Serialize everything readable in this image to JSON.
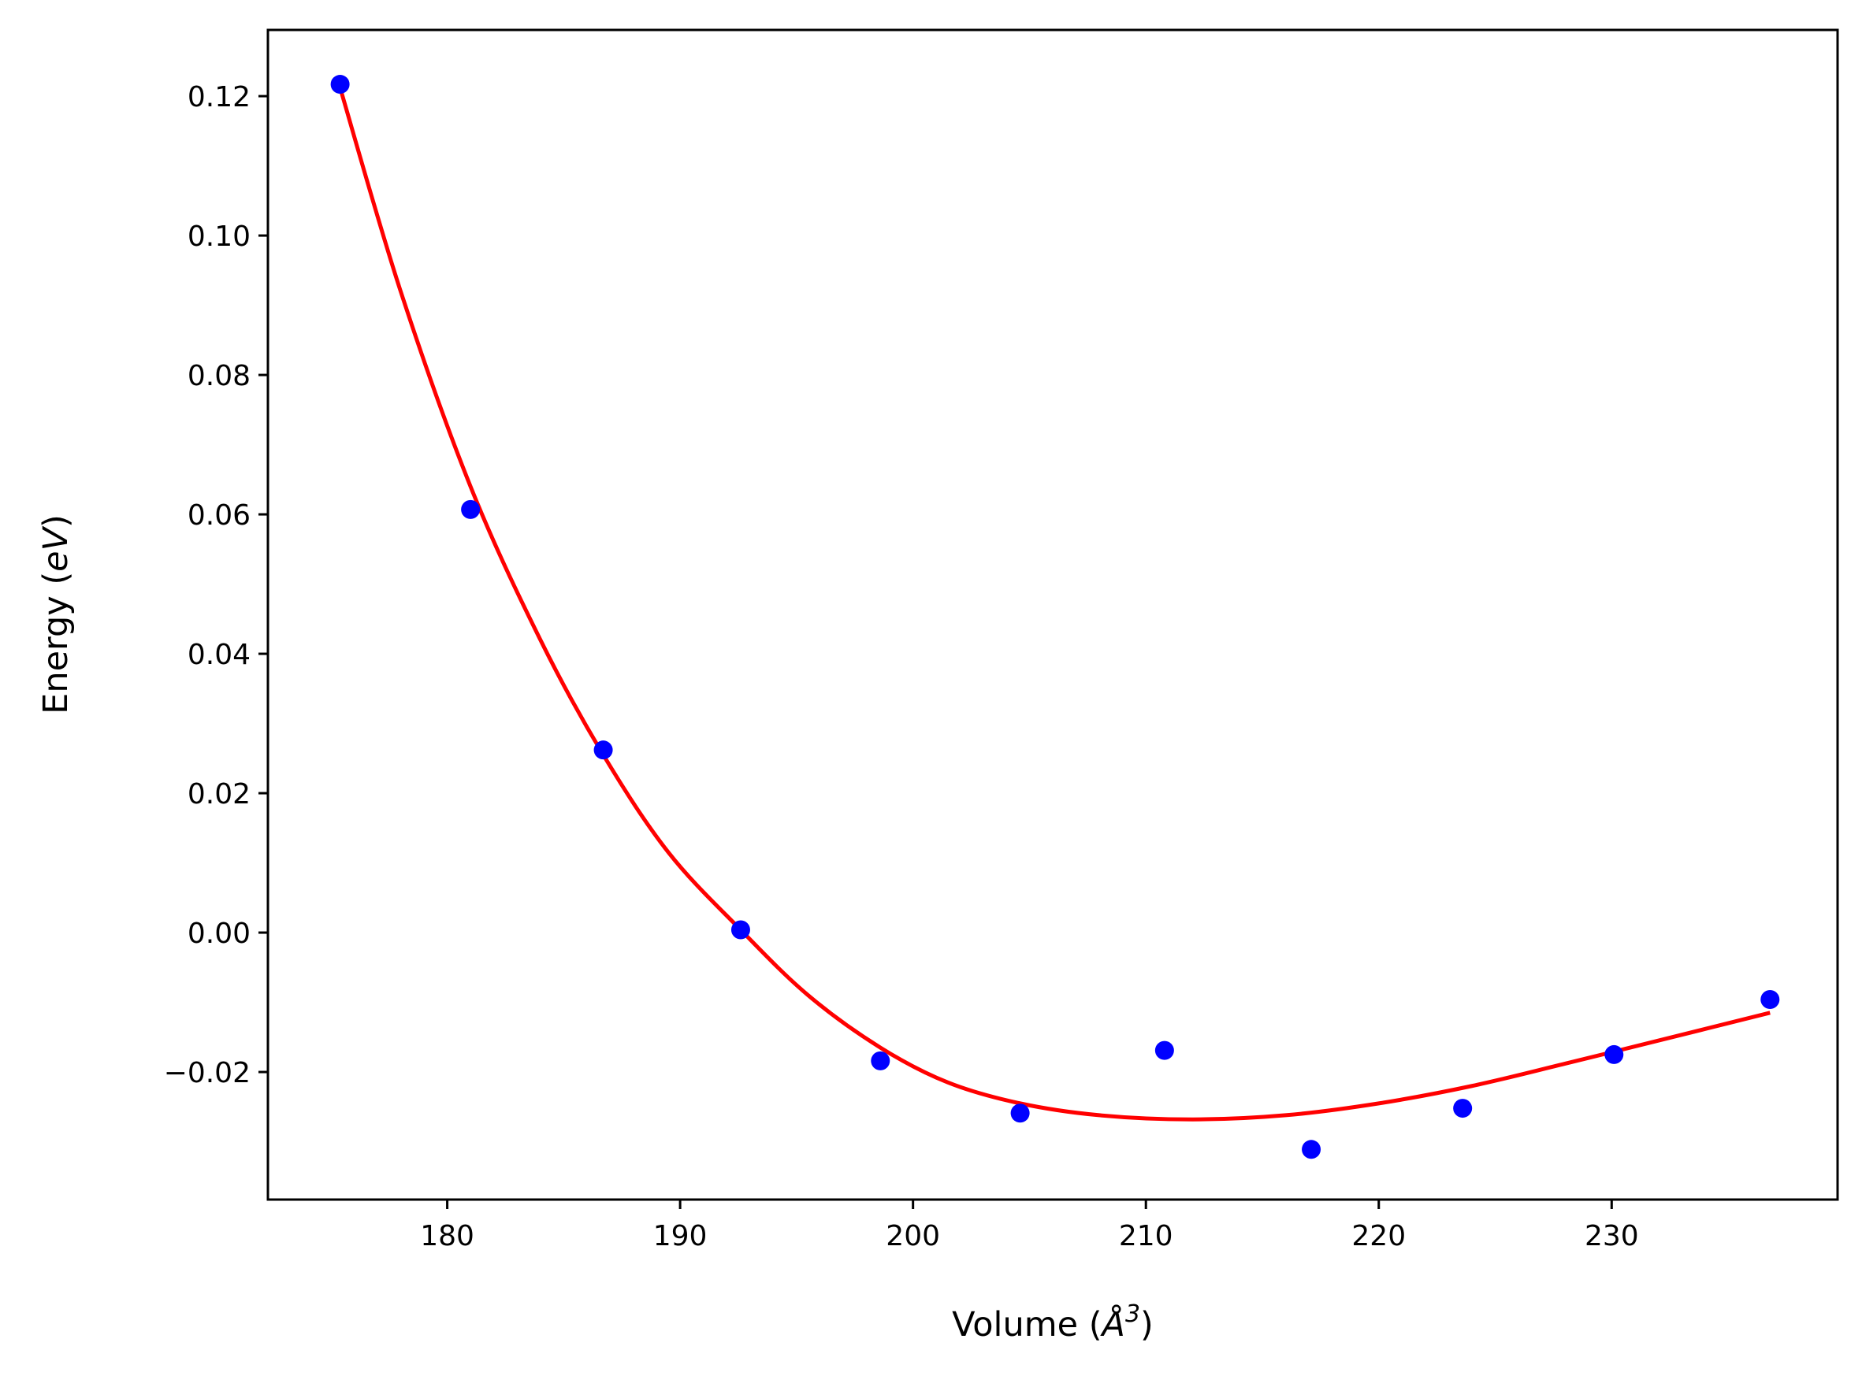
{
  "chart_data": {
    "type": "scatter",
    "title": "",
    "xlabel": {
      "prefix": "Volume (",
      "symbol": "Å",
      "exponent": "3",
      "suffix": ")"
    },
    "ylabel": {
      "prefix": "Energy (",
      "symbol": "eV",
      "suffix": ")"
    },
    "xlim": [
      172.3,
      239.7
    ],
    "ylim": [
      -0.0383,
      0.1295
    ],
    "xticks": [
      180,
      190,
      200,
      210,
      220,
      230
    ],
    "xtick_labels": [
      "180",
      "190",
      "200",
      "210",
      "220",
      "230"
    ],
    "yticks": [
      -0.02,
      0.0,
      0.02,
      0.04,
      0.06,
      0.08,
      0.1,
      0.12
    ],
    "ytick_labels": [
      "−0.02",
      "0.00",
      "0.02",
      "0.04",
      "0.06",
      "0.08",
      "0.10",
      "0.12"
    ],
    "grid": false,
    "series": [
      {
        "kind": "points",
        "color": "#0000ff",
        "x": [
          175.4,
          181.0,
          186.7,
          192.6,
          198.6,
          204.6,
          210.8,
          217.1,
          223.6,
          230.1,
          236.8
        ],
        "y": [
          0.1217,
          0.0607,
          0.0262,
          0.0004,
          -0.0184,
          -0.0259,
          -0.0169,
          -0.0311,
          -0.0252,
          -0.0175,
          -0.0096
        ]
      },
      {
        "kind": "fit-line",
        "color": "#ff0000",
        "x": [
          175.4,
          178.0,
          181.0,
          184.0,
          186.7,
          189.5,
          192.6,
          195.5,
          198.6,
          201.5,
          204.6,
          208.0,
          212.0,
          216.0,
          220.0,
          224.0,
          228.0,
          232.0,
          236.8
        ],
        "y": [
          0.1212,
          0.092,
          0.064,
          0.042,
          0.0255,
          0.0115,
          0.0004,
          -0.009,
          -0.0165,
          -0.0215,
          -0.0245,
          -0.0262,
          -0.0268,
          -0.0262,
          -0.0245,
          -0.022,
          -0.0188,
          -0.0155,
          -0.0115
        ]
      }
    ]
  }
}
